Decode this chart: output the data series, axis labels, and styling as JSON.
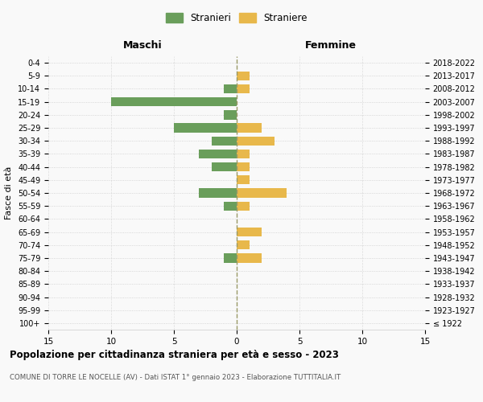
{
  "age_groups": [
    "100+",
    "95-99",
    "90-94",
    "85-89",
    "80-84",
    "75-79",
    "70-74",
    "65-69",
    "60-64",
    "55-59",
    "50-54",
    "45-49",
    "40-44",
    "35-39",
    "30-34",
    "25-29",
    "20-24",
    "15-19",
    "10-14",
    "5-9",
    "0-4"
  ],
  "birth_years": [
    "≤ 1922",
    "1923-1927",
    "1928-1932",
    "1933-1937",
    "1938-1942",
    "1943-1947",
    "1948-1952",
    "1953-1957",
    "1958-1962",
    "1963-1967",
    "1968-1972",
    "1973-1977",
    "1978-1982",
    "1983-1987",
    "1988-1992",
    "1993-1997",
    "1998-2002",
    "2003-2007",
    "2008-2012",
    "2013-2017",
    "2018-2022"
  ],
  "males": [
    0,
    0,
    0,
    0,
    0,
    1,
    0,
    0,
    0,
    1,
    3,
    0,
    2,
    3,
    2,
    5,
    1,
    10,
    1,
    0,
    0
  ],
  "females": [
    0,
    0,
    0,
    0,
    0,
    2,
    1,
    2,
    0,
    1,
    4,
    1,
    1,
    1,
    3,
    2,
    0,
    0,
    1,
    1,
    0
  ],
  "male_color": "#6a9e5b",
  "female_color": "#e8b84b",
  "title": "Popolazione per cittadinanza straniera per età e sesso - 2023",
  "subtitle": "COMUNE DI TORRE LE NOCELLE (AV) - Dati ISTAT 1° gennaio 2023 - Elaborazione TUTTITALIA.IT",
  "xlabel_left": "Maschi",
  "xlabel_right": "Femmine",
  "ylabel_left": "Fasce di età",
  "legend_male": "Stranieri",
  "legend_female": "Straniere",
  "xlim": 15,
  "background_color": "#f9f9f9"
}
